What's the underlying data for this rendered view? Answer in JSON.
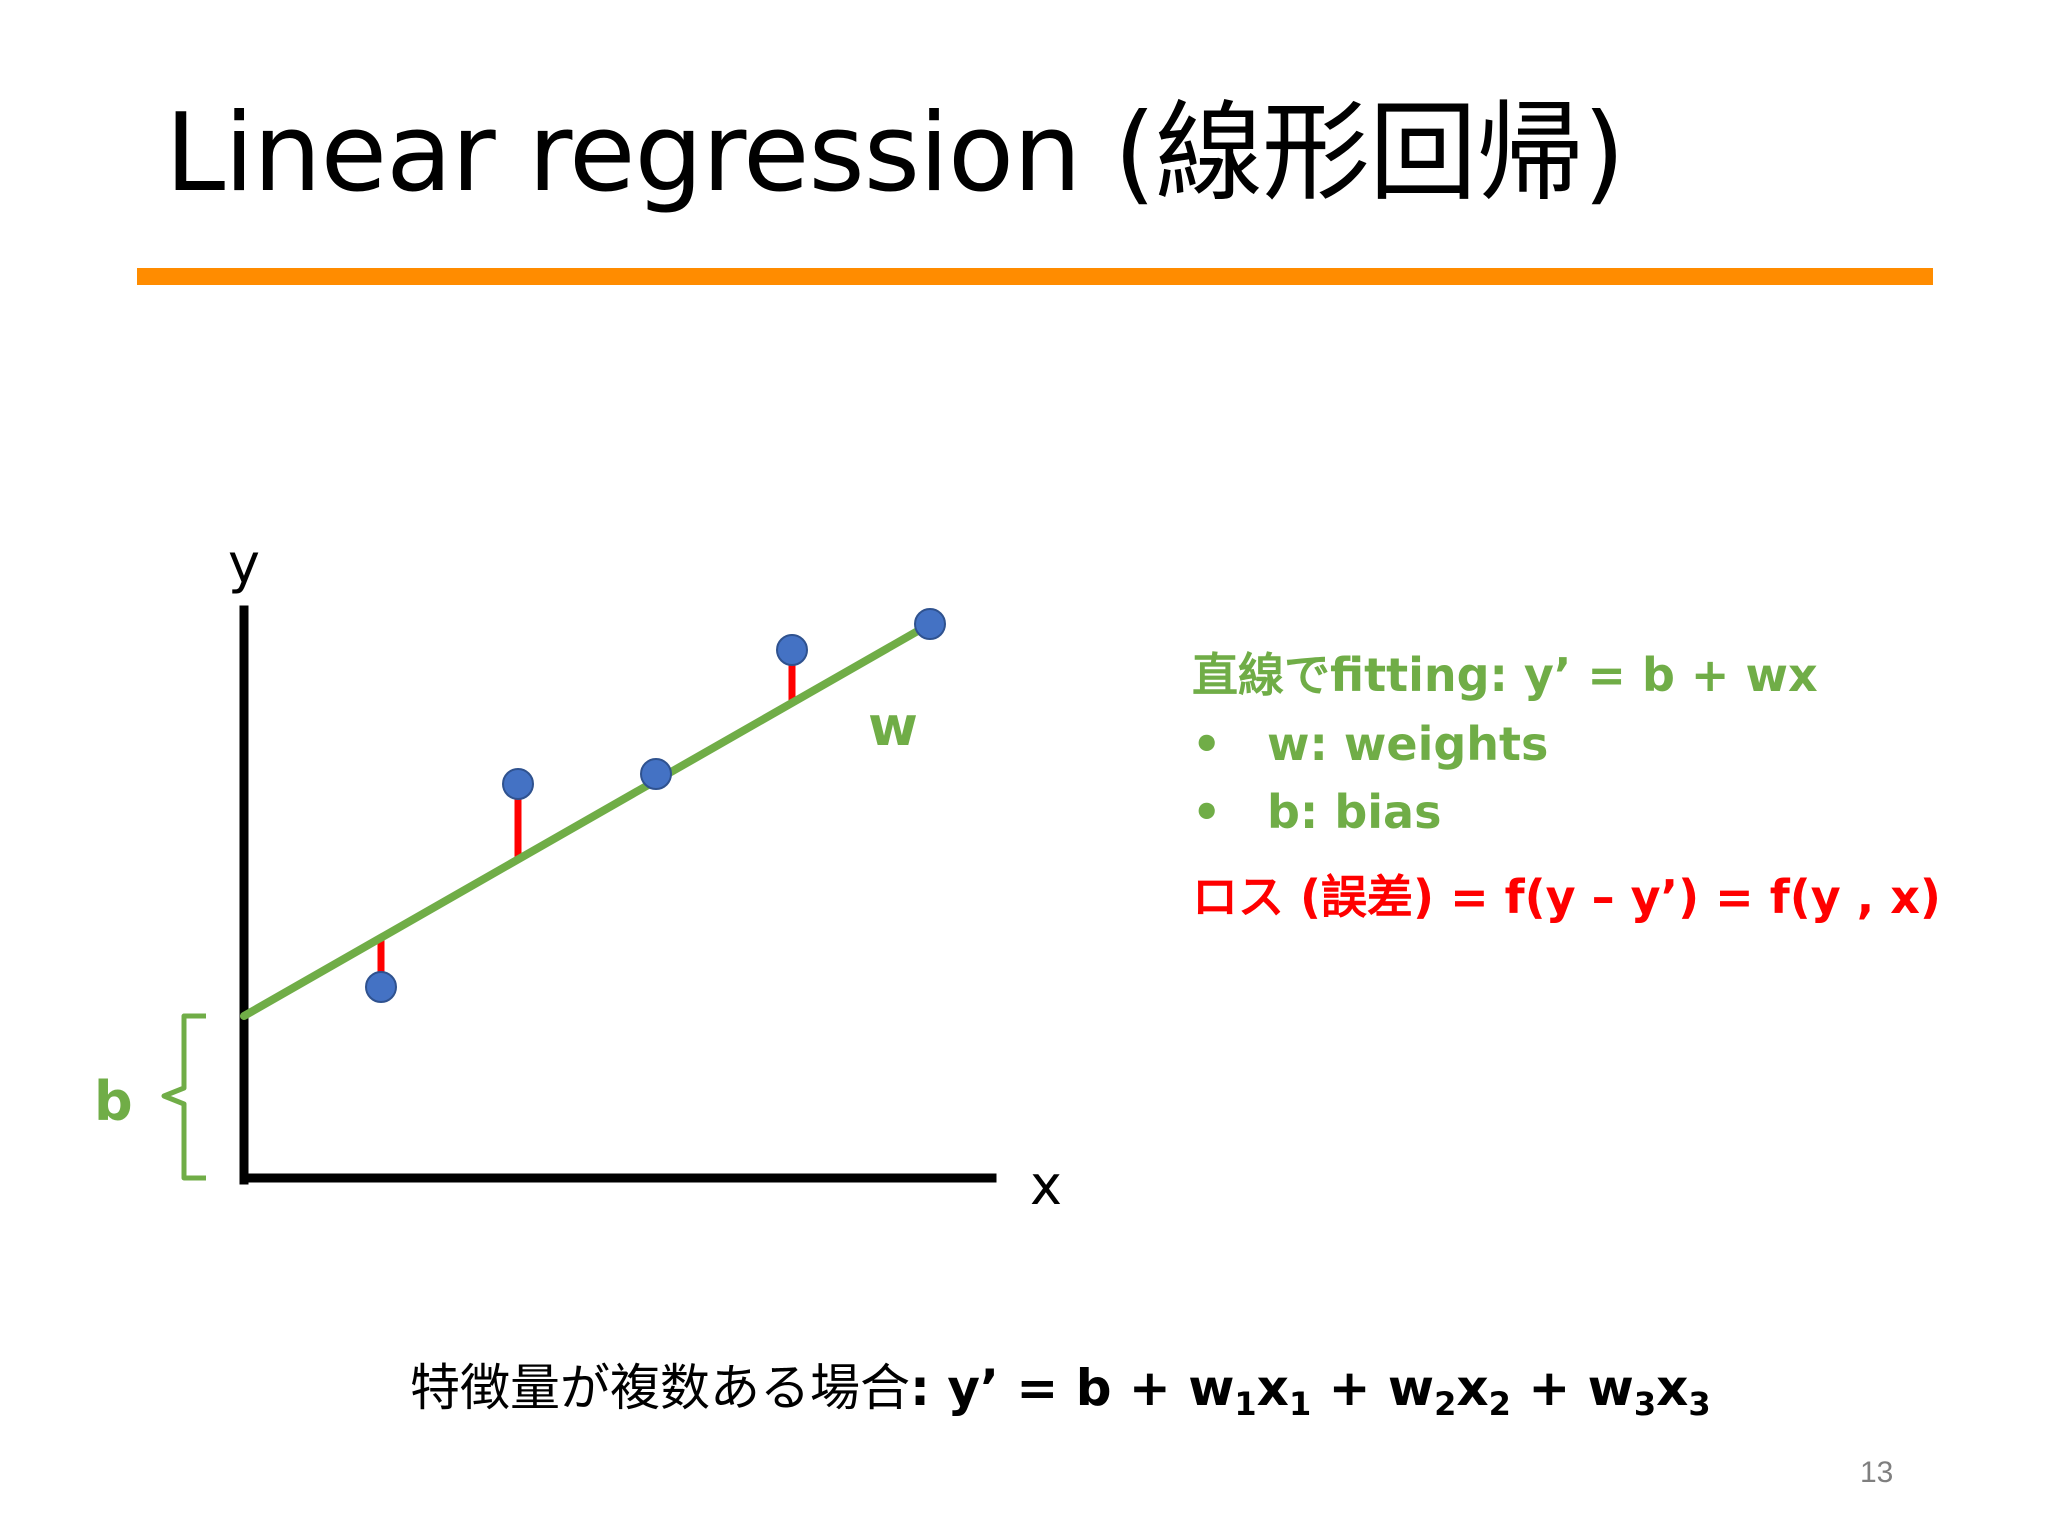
{
  "slide": {
    "title": "Linear regression (線形回帰)",
    "page_number": "13",
    "accent_color": "#ff8c00"
  },
  "diagram": {
    "y_axis_label": "y",
    "x_axis_label": "x",
    "slope_label": "w",
    "intercept_label": "b",
    "line_color": "#70ad47",
    "point_color": "#4472c4",
    "residual_color": "#ff0000"
  },
  "legend": {
    "fit_title": "直線でfitting: y’ = b + wx",
    "bullets": [
      {
        "symbol": "•",
        "text": "w: weights"
      },
      {
        "symbol": "•",
        "text": "b: bias"
      }
    ],
    "loss_text": "ロス (誤差) = f(y – y’) = f(y , x)"
  },
  "formula": {
    "prefix": "特徴量が複数ある場合",
    "colon": ":",
    "lhs": " y’ = b + ",
    "terms": [
      {
        "w": "w",
        "w_sub": "1",
        "x": "x",
        "x_sub": "1",
        "sep": " + "
      },
      {
        "w": "w",
        "w_sub": "2",
        "x": "x",
        "x_sub": "2",
        "sep": " + "
      },
      {
        "w": "w",
        "w_sub": "3",
        "x": "x",
        "x_sub": "3",
        "sep": ""
      }
    ]
  }
}
